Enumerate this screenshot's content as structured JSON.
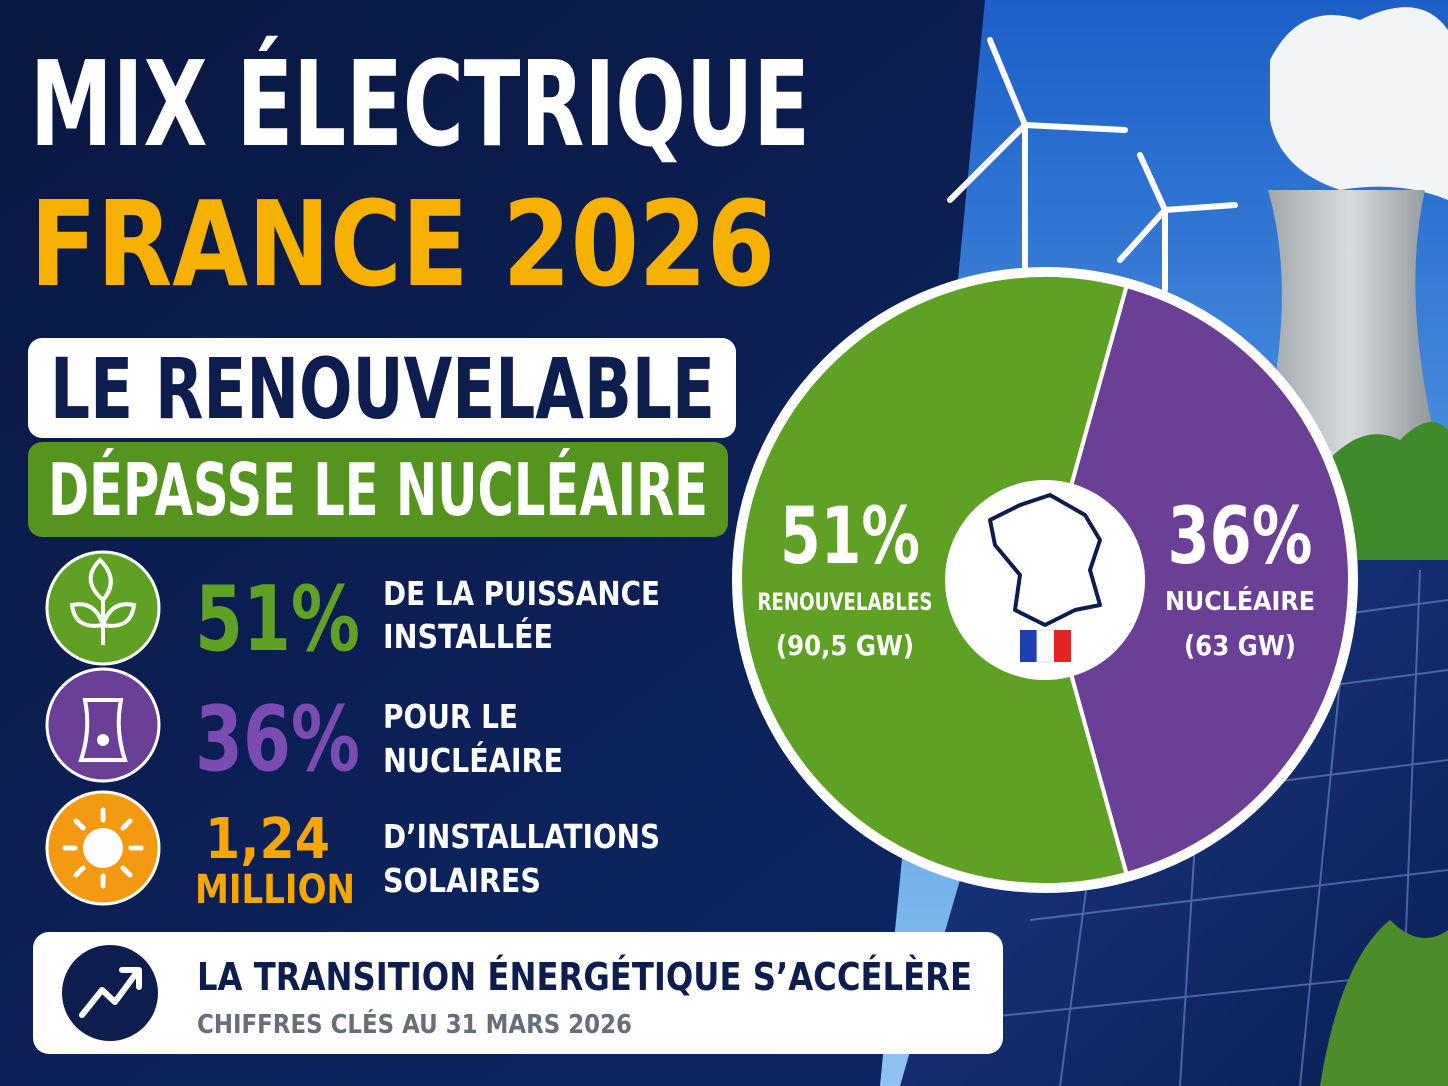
{
  "header": {
    "title_line1": "MIX ÉLECTRIQUE",
    "title_line2": "FRANCE 2026",
    "banner_line1": "LE RENOUVELABLE",
    "banner_line2": "DÉPASSE LE NUCLÉAIRE"
  },
  "stats": [
    {
      "value": "51%",
      "label": [
        "DE LA PUISSANCE",
        "INSTALLÉE"
      ]
    },
    {
      "value": "36%",
      "label": [
        "POUR LE",
        "NUCLÉAIRE"
      ]
    },
    {
      "value": [
        "1,24",
        "MILLION"
      ],
      "label": [
        "D’INSTALLATIONS",
        "SOLAIRES"
      ]
    }
  ],
  "footer": {
    "title": "LA TRANSITION ÉNERGÉTIQUE S’ACCÉLÈRE",
    "subtitle": "CHIFFRES CLÉS AU 31 MARS 2026"
  },
  "chart_data": {
    "type": "pie",
    "categories": [
      "RENOUVELABLES",
      "NUCLÉAIRE"
    ],
    "values": [
      51,
      36
    ],
    "value_labels": [
      "51%",
      "36%"
    ],
    "details": [
      "(90,5 GW)",
      "(63 GW)"
    ],
    "colors": [
      "#5fa125",
      "#6a3f96"
    ]
  }
}
